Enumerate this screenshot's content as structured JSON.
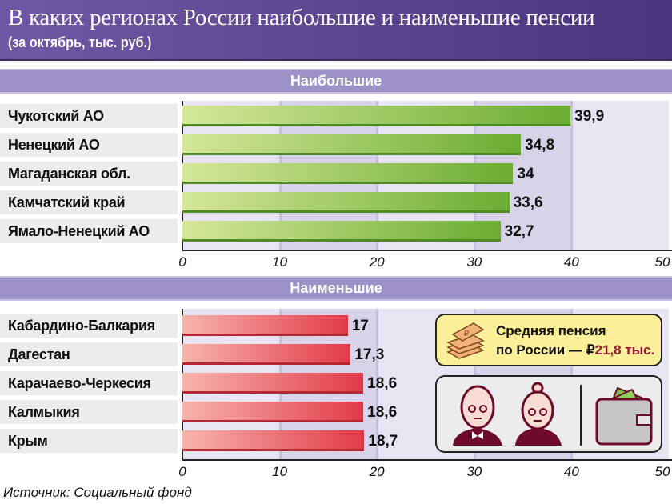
{
  "header": {
    "title": "В каких регионах России наибольшие и наименьшие пенсии",
    "subtitle": "(за октябрь, тыс. руб.)"
  },
  "note": {
    "line1": "Средняя пенсия",
    "line2_prefix": "по России — ₽",
    "value": "21,8 тыс."
  },
  "source": "Источник: Социальный фонд",
  "colors": {
    "green": "#6aac32",
    "red": "#e23a48",
    "purple": "#5a4590",
    "accent": "#9b1436"
  },
  "chart_data": [
    {
      "type": "bar",
      "title": "Наибольшие",
      "orientation": "horizontal",
      "categories": [
        "Чукотский АО",
        "Ненецкий АО",
        "Магаданская обл.",
        "Камчатский край",
        "Ямало-Ненецкий АО"
      ],
      "values": [
        39.9,
        34.8,
        34,
        33.6,
        32.7
      ],
      "labels": [
        "39,9",
        "34,8",
        "34",
        "33,6",
        "32,7"
      ],
      "xlim": [
        0,
        50
      ],
      "ticks": [
        "0",
        "10",
        "20",
        "30",
        "40",
        "50"
      ]
    },
    {
      "type": "bar",
      "title": "Наименьшие",
      "orientation": "horizontal",
      "categories": [
        "Кабардино-Балкария",
        "Дагестан",
        "Карачаево-Черкесия",
        "Калмыкия",
        "Крым"
      ],
      "values": [
        17,
        17.3,
        18.6,
        18.6,
        18.7
      ],
      "labels": [
        "17",
        "17,3",
        "18,6",
        "18,6",
        "18,7"
      ],
      "xlim": [
        0,
        50
      ],
      "ticks": [
        "0",
        "10",
        "20",
        "30",
        "40",
        "50"
      ]
    }
  ]
}
